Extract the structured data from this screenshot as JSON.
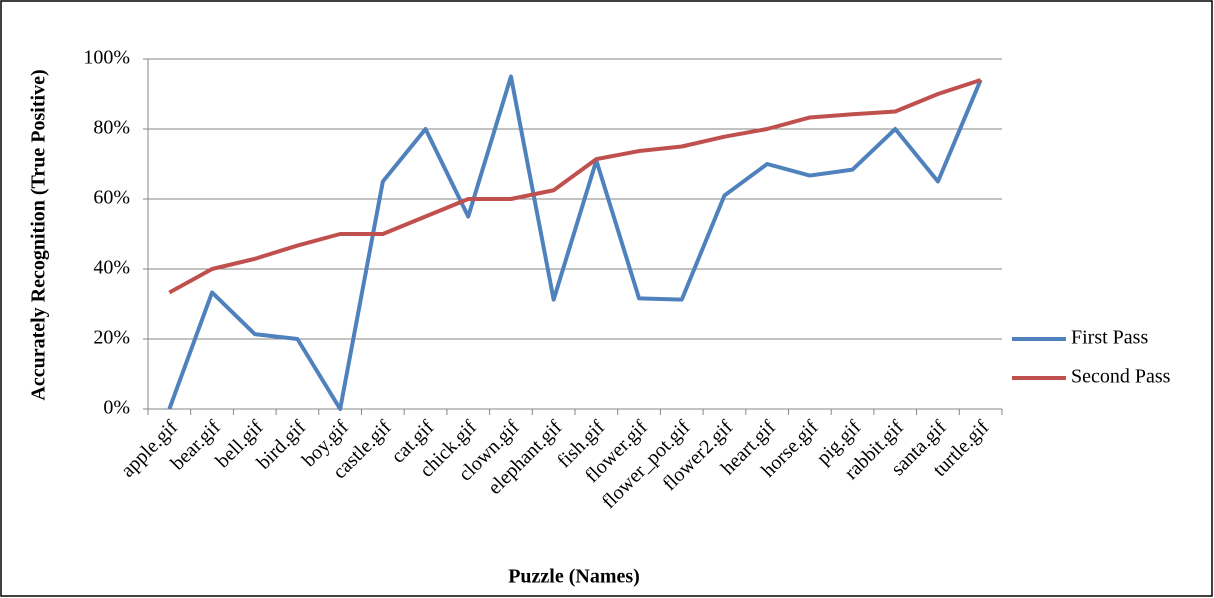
{
  "chart_data": {
    "type": "line",
    "x_label": "Puzzle (Names)",
    "y_label": "Accurately Recognition (True Positive)",
    "categories": [
      "apple.gif",
      "bear.gif",
      "bell.gif",
      "bird.gif",
      "boy.gif",
      "castle.gif",
      "cat.gif",
      "chick.gif",
      "clown.gif",
      "elephant.gif",
      "fish.gif",
      "flower.gif",
      "flower_pot.gif",
      "flower2.gif",
      "heart.gif",
      "horse.gif",
      "pig.gif",
      "rabbit.gif",
      "santa.gif",
      "turtle.gif"
    ],
    "series": [
      {
        "name": "First Pass",
        "color": "#4f81bd",
        "values": [
          0,
          33.3,
          21.4,
          20,
          0,
          65,
          80,
          55,
          95,
          31.25,
          71,
          31.6,
          31.25,
          61,
          70,
          66.7,
          68.4,
          80,
          65,
          94
        ]
      },
      {
        "name": "Second Pass",
        "color": "#c0504d",
        "values": [
          33.3,
          40,
          42.9,
          46.7,
          50,
          50,
          55,
          60,
          60,
          62.5,
          71.4,
          73.7,
          75,
          77.8,
          80,
          83.3,
          84.2,
          85,
          90,
          94
        ]
      }
    ],
    "ylim": [
      0,
      100
    ],
    "yticks": [
      {
        "value": 0,
        "label": "0%"
      },
      {
        "value": 20,
        "label": "20%"
      },
      {
        "value": 40,
        "label": "40%"
      },
      {
        "value": 60,
        "label": "60%"
      },
      {
        "value": 80,
        "label": "80%"
      },
      {
        "value": 100,
        "label": "100%"
      }
    ],
    "grid": true,
    "legend": "right"
  }
}
